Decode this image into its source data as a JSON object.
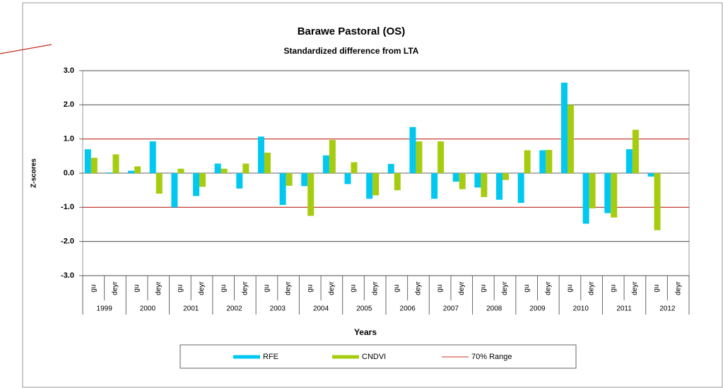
{
  "chart_data": {
    "type": "bar",
    "title": "Barawe Pastoral  (OS)",
    "subtitle": "Standardized difference from LTA",
    "y_label": "Z-scores",
    "x_label": "Years",
    "categories": [
      "gu",
      "deyr",
      "gu",
      "deyr",
      "gu",
      "deyr",
      "gu",
      "deyr",
      "gu",
      "deyr",
      "gu",
      "deyr",
      "gu",
      "deyr",
      "gu",
      "deyr",
      "gu",
      "deyr",
      "gu",
      "deyr",
      "gu",
      "deyr",
      "gu",
      "deyr",
      "gu",
      "deyr",
      "gu",
      "deyr"
    ],
    "years": [
      "1999",
      "2000",
      "2001",
      "2002",
      "2003",
      "2004",
      "2005",
      "2006",
      "2007",
      "2008",
      "2009",
      "2010",
      "2011",
      "2012"
    ],
    "series": [
      {
        "name": "RFE",
        "color": "#00c8f0",
        "values": [
          0.7,
          0.02,
          0.07,
          0.93,
          -1.0,
          -0.67,
          0.28,
          -0.45,
          1.07,
          -0.93,
          -0.38,
          0.52,
          -0.32,
          -0.75,
          0.27,
          1.35,
          -0.75,
          -0.25,
          -0.42,
          -0.78,
          -0.87,
          0.67,
          2.65,
          -1.48,
          -1.17,
          0.7,
          -0.1,
          null
        ]
      },
      {
        "name": "CNDVI",
        "color": "#a6cc10",
        "values": [
          0.45,
          0.55,
          0.2,
          -0.6,
          0.13,
          -0.4,
          0.13,
          0.28,
          0.6,
          -0.37,
          -1.25,
          0.97,
          0.32,
          -0.65,
          -0.5,
          0.93,
          0.93,
          -0.47,
          -0.7,
          -0.2,
          0.67,
          0.68,
          2.0,
          -1.03,
          -1.3,
          1.27,
          -1.67,
          null
        ]
      }
    ],
    "range": {
      "name": "70% Range",
      "color": "#d03020",
      "values": [
        1.0,
        -1.0
      ]
    },
    "ylim": [
      -3,
      3
    ],
    "yticks": [
      {
        "value": -3,
        "label": "-3.0"
      },
      {
        "value": -2,
        "label": "-2.0"
      },
      {
        "value": -1,
        "label": "-1.0"
      },
      {
        "value": 0,
        "label": "0.0"
      },
      {
        "value": 1,
        "label": "1.0"
      },
      {
        "value": 2,
        "label": "2.0"
      },
      {
        "value": 3,
        "label": "3.0"
      }
    ],
    "grid": true
  }
}
